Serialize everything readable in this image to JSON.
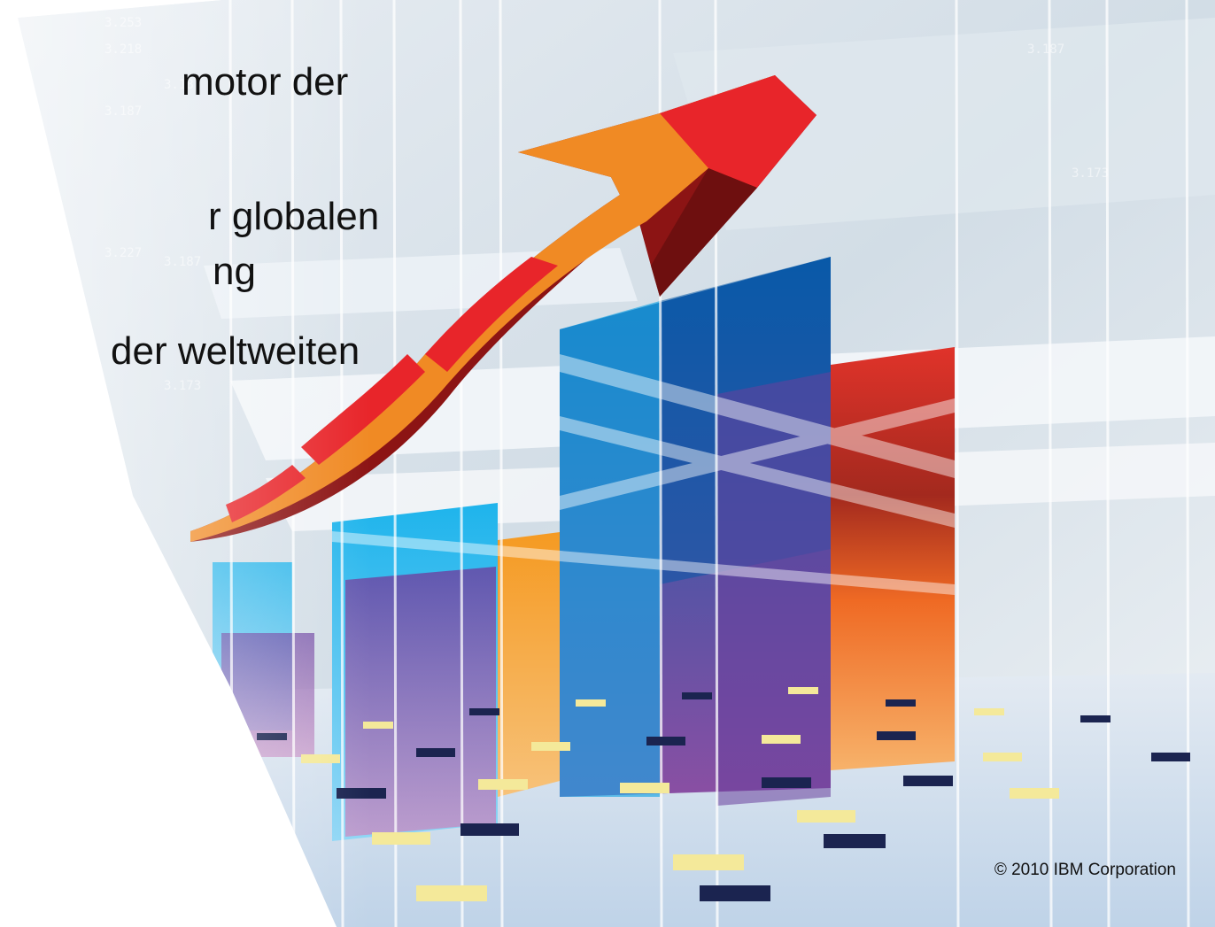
{
  "slide": {
    "bullets": [
      "motor der",
      "r globalen",
      "ng",
      "der weltweiten"
    ],
    "copyright": "© 2010 IBM Corporation"
  },
  "illustration": {
    "subject": "growth-chart-with-rising-arrow",
    "colors": {
      "arrow_orange": "#f08a24",
      "arrow_red": "#e8252a",
      "arrow_dark": "#8c1414",
      "bar_blue": "#0a5aa8",
      "bar_cyan": "#1eb4ec",
      "bar_purple": "#8a4fa3",
      "bar_orange": "#f59a22",
      "bar_red": "#e0332a",
      "floor_yellow": "#f4e99a",
      "floor_navy": "#1b2450"
    }
  }
}
